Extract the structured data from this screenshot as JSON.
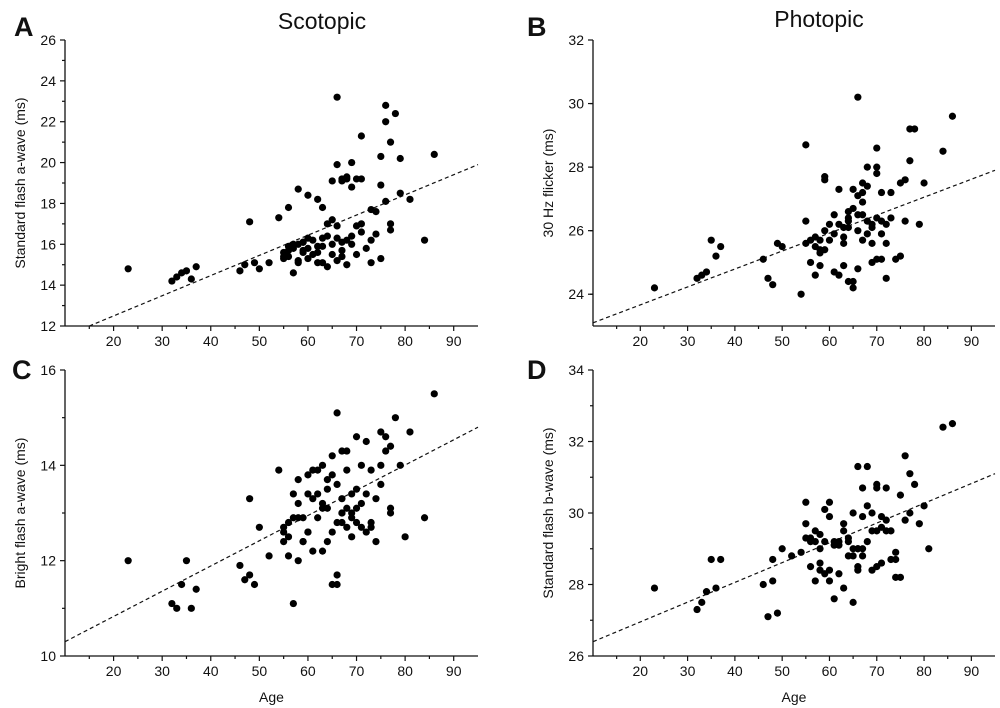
{
  "column_titles": [
    "Scotopic",
    "Photopic"
  ],
  "chart_data": [
    {
      "panel": "A",
      "type": "scatter",
      "xlabel": "",
      "ylabel": "Standard flash a-wave (ms)",
      "xlim": [
        10,
        95
      ],
      "ylim": [
        12,
        26
      ],
      "xticks": [
        20,
        30,
        40,
        50,
        60,
        70,
        80,
        90
      ],
      "yticks": [
        12,
        14,
        16,
        18,
        20,
        22,
        24,
        26
      ],
      "fit_line": {
        "x": [
          15,
          95
        ],
        "y": [
          12.0,
          19.9
        ]
      },
      "points": {
        "x": [
          23,
          32,
          33,
          34,
          35,
          36,
          37,
          46,
          47,
          49,
          50,
          52,
          54,
          55,
          55,
          56,
          56,
          57,
          57,
          58,
          58,
          59,
          59,
          60,
          60,
          61,
          62,
          62,
          63,
          64,
          64,
          65,
          65,
          66,
          66,
          66,
          67,
          67,
          67,
          68,
          68,
          69,
          69,
          70,
          70,
          71,
          71,
          72,
          73,
          55,
          56,
          57,
          58,
          59,
          60,
          61,
          62,
          63,
          63,
          64,
          65,
          66,
          67,
          68,
          69,
          70,
          71,
          73,
          74,
          75,
          75,
          76,
          76,
          77,
          77,
          78,
          79,
          81,
          84,
          86,
          48,
          56,
          58,
          60,
          63,
          65,
          66,
          67,
          69,
          71,
          76,
          75,
          77,
          79,
          59,
          62,
          68,
          73,
          74
        ],
        "y": [
          14.8,
          14.2,
          14.4,
          14.6,
          14.7,
          14.3,
          14.9,
          14.7,
          15.0,
          15.1,
          14.8,
          15.1,
          17.3,
          15.6,
          15.3,
          15.9,
          15.4,
          15.8,
          14.6,
          16.0,
          15.1,
          15.6,
          16.1,
          15.3,
          16.3,
          15.5,
          18.2,
          15.9,
          15.1,
          16.4,
          14.9,
          15.5,
          16.0,
          15.2,
          16.3,
          16.9,
          15.7,
          16.1,
          15.4,
          16.2,
          15.0,
          16.4,
          16.0,
          15.5,
          16.9,
          16.6,
          17.0,
          15.8,
          15.1,
          15.4,
          15.7,
          16.0,
          15.2,
          16.1,
          15.8,
          16.2,
          15.6,
          15.9,
          16.3,
          17.0,
          19.1,
          19.9,
          19.2,
          19.3,
          18.8,
          19.2,
          19.2,
          17.7,
          16.5,
          18.9,
          20.3,
          22.8,
          22.0,
          21.0,
          17.0,
          22.4,
          18.5,
          18.2,
          16.2,
          20.4,
          17.1,
          17.8,
          18.7,
          18.4,
          17.8,
          17.2,
          23.2,
          19.1,
          20.0,
          21.3,
          18.1,
          15.3,
          16.7,
          20.2,
          15.7,
          15.1,
          19.2,
          16.2,
          17.6
        ]
      }
    },
    {
      "panel": "B",
      "type": "scatter",
      "xlabel": "",
      "ylabel": "30 Hz flicker (ms)",
      "xlim": [
        10,
        95
      ],
      "ylim": [
        23,
        32
      ],
      "xticks": [
        20,
        30,
        40,
        50,
        60,
        70,
        80,
        90
      ],
      "yticks": [
        24,
        26,
        28,
        30,
        32
      ],
      "fit_line": {
        "x": [
          10,
          95
        ],
        "y": [
          23.1,
          27.9
        ]
      },
      "points": {
        "x": [
          23,
          32,
          33,
          34,
          35,
          36,
          37,
          46,
          47,
          48,
          49,
          50,
          54,
          55,
          55,
          56,
          56,
          57,
          57,
          58,
          58,
          59,
          59,
          59,
          60,
          60,
          61,
          61,
          62,
          62,
          63,
          63,
          64,
          64,
          64,
          65,
          65,
          65,
          66,
          66,
          66,
          67,
          67,
          67,
          68,
          68,
          68,
          69,
          69,
          69,
          70,
          70,
          70,
          71,
          71,
          71,
          72,
          72,
          73,
          73,
          74,
          75,
          75,
          76,
          76,
          77,
          77,
          78,
          79,
          80,
          84,
          86,
          55,
          58,
          62,
          63,
          64,
          66,
          67,
          68,
          70,
          72,
          57,
          59,
          61,
          64,
          65,
          66,
          67,
          69,
          70,
          71,
          58,
          63
        ],
        "y": [
          24.2,
          24.5,
          24.6,
          24.7,
          25.7,
          25.2,
          25.5,
          25.1,
          24.5,
          24.3,
          25.6,
          25.5,
          24.0,
          25.6,
          28.7,
          25.0,
          25.7,
          25.8,
          24.6,
          24.9,
          25.3,
          27.6,
          26.0,
          25.4,
          25.7,
          26.2,
          24.7,
          26.5,
          24.6,
          27.3,
          24.9,
          25.6,
          24.4,
          26.1,
          26.3,
          24.2,
          24.4,
          26.7,
          27.1,
          24.8,
          26.0,
          26.5,
          27.2,
          25.7,
          26.3,
          27.4,
          25.9,
          25.0,
          25.6,
          26.1,
          25.1,
          26.4,
          27.8,
          25.1,
          26.3,
          27.2,
          25.6,
          24.5,
          27.2,
          26.4,
          25.1,
          25.2,
          27.5,
          27.6,
          26.3,
          29.2,
          28.2,
          29.2,
          26.2,
          27.5,
          28.5,
          29.6,
          26.3,
          25.7,
          26.2,
          25.8,
          26.4,
          30.2,
          27.5,
          28.0,
          28.6,
          26.2,
          25.5,
          27.7,
          25.9,
          26.6,
          27.3,
          26.5,
          26.9,
          26.2,
          28.0,
          25.9,
          25.4,
          26.1
        ]
      }
    },
    {
      "panel": "C",
      "type": "scatter",
      "xlabel": "Age",
      "ylabel": "Bright flash a-wave (ms)",
      "xlim": [
        10,
        95
      ],
      "ylim": [
        10,
        16
      ],
      "xticks": [
        20,
        30,
        40,
        50,
        60,
        70,
        80,
        90
      ],
      "yticks": [
        10,
        12,
        14,
        16
      ],
      "fit_line": {
        "x": [
          10,
          95
        ],
        "y": [
          10.3,
          14.8
        ]
      },
      "points": {
        "x": [
          23,
          32,
          33,
          34,
          35,
          36,
          37,
          46,
          47,
          48,
          48,
          49,
          50,
          52,
          54,
          55,
          55,
          56,
          56,
          57,
          57,
          58,
          58,
          58,
          59,
          59,
          60,
          60,
          61,
          61,
          62,
          62,
          63,
          63,
          64,
          64,
          65,
          65,
          65,
          66,
          66,
          66,
          67,
          67,
          67,
          68,
          68,
          69,
          69,
          70,
          70,
          70,
          71,
          71,
          72,
          72,
          73,
          74,
          74,
          75,
          75,
          76,
          76,
          77,
          77,
          77,
          78,
          79,
          80,
          81,
          84,
          86,
          55,
          56,
          59,
          60,
          62,
          63,
          64,
          66,
          67,
          68,
          69,
          71,
          73,
          57,
          60,
          63,
          65,
          67,
          69,
          72,
          58,
          61,
          64,
          66,
          68,
          70,
          73,
          75
        ],
        "y": [
          12.0,
          11.1,
          11.0,
          11.5,
          12.0,
          11.0,
          11.4,
          11.9,
          11.6,
          11.7,
          13.3,
          11.5,
          12.7,
          12.1,
          13.9,
          12.6,
          12.4,
          12.5,
          12.1,
          11.1,
          13.4,
          12.9,
          13.2,
          13.7,
          12.9,
          12.4,
          13.4,
          12.6,
          13.9,
          12.2,
          13.4,
          12.9,
          13.2,
          14.0,
          12.4,
          13.5,
          11.5,
          13.8,
          14.2,
          11.7,
          11.5,
          15.1,
          12.8,
          14.3,
          13.0,
          12.7,
          14.3,
          12.5,
          13.4,
          14.6,
          13.1,
          12.8,
          12.7,
          14.0,
          12.6,
          14.5,
          12.7,
          12.4,
          13.3,
          13.6,
          14.7,
          14.3,
          14.6,
          13.1,
          14.4,
          13.0,
          15.0,
          14.0,
          12.5,
          14.7,
          12.9,
          15.5,
          12.7,
          12.8,
          12.4,
          13.8,
          13.9,
          13.1,
          13.7,
          12.8,
          13.3,
          13.9,
          13.0,
          13.2,
          13.9,
          12.9,
          12.6,
          12.2,
          12.6,
          13.0,
          12.9,
          13.4,
          12.0,
          13.3,
          13.1,
          13.6,
          13.1,
          13.5,
          12.8,
          14.0
        ]
      }
    },
    {
      "panel": "D",
      "type": "scatter",
      "xlabel": "Age",
      "ylabel": "Standard flash b-wave (ms)",
      "xlim": [
        10,
        95
      ],
      "ylim": [
        26,
        34
      ],
      "xticks": [
        20,
        30,
        40,
        50,
        60,
        70,
        80,
        90
      ],
      "yticks": [
        26,
        28,
        30,
        32,
        34
      ],
      "fit_line": {
        "x": [
          10,
          95
        ],
        "y": [
          26.4,
          31.1
        ]
      },
      "points": {
        "x": [
          23,
          32,
          33,
          34,
          35,
          36,
          37,
          46,
          47,
          48,
          48,
          49,
          50,
          52,
          54,
          55,
          55,
          56,
          56,
          57,
          57,
          58,
          58,
          58,
          59,
          59,
          60,
          60,
          61,
          61,
          62,
          62,
          63,
          63,
          64,
          64,
          65,
          65,
          65,
          66,
          66,
          66,
          67,
          67,
          67,
          68,
          68,
          69,
          69,
          70,
          70,
          70,
          71,
          71,
          72,
          72,
          73,
          74,
          74,
          75,
          75,
          76,
          76,
          77,
          77,
          78,
          79,
          80,
          81,
          84,
          86,
          55,
          57,
          59,
          61,
          63,
          65,
          67,
          69,
          71,
          73,
          56,
          58,
          60,
          62,
          64,
          66,
          68,
          70,
          72,
          74,
          60,
          66
        ],
        "y": [
          27.9,
          27.3,
          27.5,
          27.8,
          28.7,
          27.9,
          28.7,
          28.0,
          27.1,
          28.1,
          28.7,
          27.2,
          29.0,
          28.8,
          28.9,
          30.3,
          29.3,
          29.2,
          28.5,
          29.2,
          28.1,
          28.4,
          29.0,
          29.4,
          30.1,
          28.3,
          28.4,
          30.3,
          27.6,
          29.2,
          29.1,
          28.3,
          29.5,
          27.9,
          29.2,
          28.8,
          27.5,
          29.0,
          30.0,
          31.3,
          29.0,
          28.4,
          29.9,
          30.7,
          28.8,
          31.3,
          30.2,
          29.5,
          28.4,
          30.7,
          28.5,
          30.8,
          28.6,
          29.9,
          29.5,
          30.7,
          28.7,
          28.2,
          28.7,
          28.2,
          30.5,
          31.6,
          29.8,
          30.0,
          31.1,
          30.8,
          29.7,
          30.2,
          29.0,
          32.4,
          32.5,
          29.7,
          29.5,
          29.2,
          29.1,
          29.7,
          28.8,
          29.0,
          30.0,
          29.6,
          29.5,
          29.3,
          28.6,
          29.9,
          29.2,
          29.3,
          29.0,
          29.2,
          29.5,
          29.8,
          28.9,
          28.1,
          28.5
        ]
      }
    }
  ]
}
